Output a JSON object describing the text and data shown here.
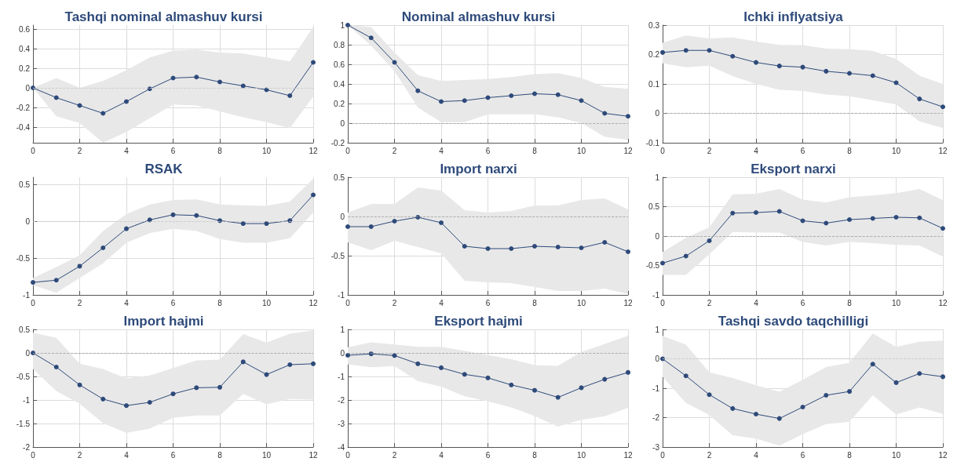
{
  "chart_data": [
    {
      "type": "line",
      "title": "Tashqi nominal almashuv kursi",
      "x": [
        0,
        1,
        2,
        3,
        4,
        5,
        6,
        7,
        8,
        9,
        10,
        11,
        12
      ],
      "xlim": [
        0,
        12
      ],
      "xticks": [
        0,
        2,
        4,
        6,
        8,
        10,
        12
      ],
      "ylim": [
        -0.56,
        0.64
      ],
      "yticks": [
        -0.4,
        -0.2,
        0,
        0.2,
        0.4,
        0.6
      ],
      "grid": true,
      "marker": "circle",
      "line_style": "solid",
      "ref_lines": [
        {
          "axis": "y",
          "value": 0,
          "line_style": "dashed",
          "color": "#c8c8c8"
        }
      ],
      "series": [
        {
          "color": "#2e4a7a",
          "values": [
            0,
            -0.1,
            -0.18,
            -0.26,
            -0.14,
            -0.01,
            0.1,
            0.11,
            0.06,
            0.02,
            -0.02,
            -0.08,
            0.26
          ],
          "lower": [
            0,
            -0.29,
            -0.36,
            -0.56,
            -0.45,
            -0.31,
            -0.17,
            -0.18,
            -0.24,
            -0.3,
            -0.35,
            -0.41,
            -0.09
          ],
          "upper": [
            0,
            0.1,
            0,
            0.07,
            0.18,
            0.31,
            0.38,
            0.39,
            0.36,
            0.35,
            0.31,
            0.27,
            0.62
          ]
        }
      ]
    },
    {
      "type": "line",
      "title": "Nominal almashuv kursi",
      "x": [
        0,
        1,
        2,
        3,
        4,
        5,
        6,
        7,
        8,
        9,
        10,
        11,
        12
      ],
      "xlim": [
        0,
        12
      ],
      "xticks": [
        0,
        2,
        4,
        6,
        8,
        10,
        12
      ],
      "ylim": [
        -0.2,
        1
      ],
      "yticks": [
        -0.2,
        0,
        0.2,
        0.4,
        0.6,
        0.8,
        1
      ],
      "grid": true,
      "marker": "circle",
      "line_style": "solid",
      "ref_lines": [
        {
          "axis": "y",
          "value": 0,
          "line_style": "dashed",
          "color": "#a0a0a0"
        }
      ],
      "series": [
        {
          "color": "#2e4a7a",
          "values": [
            1,
            0.87,
            0.62,
            0.33,
            0.22,
            0.23,
            0.26,
            0.28,
            0.3,
            0.29,
            0.23,
            0.1,
            0.07
          ],
          "lower": [
            1,
            0.79,
            0.53,
            0.16,
            0.01,
            0.01,
            0.09,
            0.09,
            0.09,
            0.06,
            0,
            -0.14,
            -0.17
          ],
          "upper": [
            1,
            0.98,
            0.72,
            0.49,
            0.43,
            0.44,
            0.45,
            0.47,
            0.5,
            0.51,
            0.46,
            0.37,
            0.35
          ]
        }
      ]
    },
    {
      "type": "line",
      "title": "Ichki inflyatsiya",
      "x": [
        0,
        1,
        2,
        3,
        4,
        5,
        6,
        7,
        8,
        9,
        10,
        11,
        12
      ],
      "xlim": [
        0,
        12
      ],
      "xticks": [
        0,
        2,
        4,
        6,
        8,
        10,
        12
      ],
      "ylim": [
        -0.1,
        0.3
      ],
      "yticks": [
        -0.1,
        0,
        0.1,
        0.2,
        0.3
      ],
      "grid": true,
      "marker": "circle",
      "line_style": "solid",
      "ref_lines": [
        {
          "axis": "y",
          "value": 0,
          "line_style": "dashed",
          "color": "#a0a0a0"
        }
      ],
      "series": [
        {
          "color": "#2e4a7a",
          "values": [
            0.207,
            0.214,
            0.214,
            0.194,
            0.173,
            0.161,
            0.157,
            0.143,
            0.136,
            0.128,
            0.104,
            0.049,
            0.022
          ],
          "lower": [
            0.17,
            0.157,
            0.162,
            0.127,
            0.1,
            0.08,
            0.076,
            0.064,
            0.058,
            0.045,
            0.03,
            -0.027,
            -0.05
          ],
          "upper": [
            0.24,
            0.265,
            0.255,
            0.258,
            0.245,
            0.233,
            0.232,
            0.22,
            0.218,
            0.213,
            0.185,
            0.128,
            0.1
          ]
        }
      ]
    },
    {
      "type": "line",
      "title": "RSAK",
      "x": [
        0,
        1,
        2,
        3,
        4,
        5,
        6,
        7,
        8,
        9,
        10,
        11,
        12
      ],
      "xlim": [
        0,
        12
      ],
      "xticks": [
        0,
        2,
        4,
        6,
        8,
        10,
        12
      ],
      "ylim": [
        -1,
        0.6
      ],
      "yticks": [
        -1,
        -0.5,
        0,
        0.5
      ],
      "grid": true,
      "marker": "circle",
      "line_style": "solid",
      "ref_lines": [
        {
          "axis": "y",
          "value": 0,
          "line_style": "dashed",
          "color": "#c8c8c8"
        }
      ],
      "series": [
        {
          "color": "#2e4a7a",
          "values": [
            -0.83,
            -0.8,
            -0.61,
            -0.36,
            -0.1,
            0.02,
            0.09,
            0.08,
            0.01,
            -0.03,
            -0.03,
            0.01,
            0.36
          ],
          "lower": [
            -0.87,
            -0.97,
            -0.77,
            -0.57,
            -0.29,
            -0.16,
            -0.1,
            -0.13,
            -0.24,
            -0.29,
            -0.29,
            -0.23,
            0.12
          ],
          "upper": [
            -0.77,
            -0.62,
            -0.46,
            -0.13,
            0.1,
            0.23,
            0.29,
            0.3,
            0.23,
            0.22,
            0.21,
            0.27,
            0.58
          ]
        }
      ]
    },
    {
      "type": "line",
      "title": "Import narxi",
      "x": [
        0,
        1,
        2,
        3,
        4,
        5,
        6,
        7,
        8,
        9,
        10,
        11,
        12
      ],
      "xlim": [
        0,
        12
      ],
      "xticks": [
        0,
        2,
        4,
        6,
        8,
        10,
        12
      ],
      "ylim": [
        -1,
        0.5
      ],
      "yticks": [
        -1,
        -0.5,
        0,
        0.5
      ],
      "grid": true,
      "marker": "circle",
      "line_style": "solid",
      "ref_lines": [
        {
          "axis": "y",
          "value": 0,
          "line_style": "dashed",
          "color": "#a0a0a0"
        }
      ],
      "series": [
        {
          "color": "#2e4a7a",
          "values": [
            -0.13,
            -0.13,
            -0.06,
            -0.01,
            -0.08,
            -0.38,
            -0.41,
            -0.41,
            -0.38,
            -0.39,
            -0.4,
            -0.33,
            -0.45
          ],
          "lower": [
            -0.33,
            -0.43,
            -0.31,
            -0.39,
            -0.47,
            -0.82,
            -0.84,
            -0.85,
            -0.9,
            -0.95,
            -0.95,
            -0.92,
            -0.99
          ],
          "upper": [
            0.05,
            0.16,
            0.16,
            0.37,
            0.33,
            0.08,
            0.05,
            0.07,
            0.14,
            0.14,
            0.21,
            0.23,
            0.09
          ]
        }
      ]
    },
    {
      "type": "line",
      "title": "Eksport narxi",
      "x": [
        0,
        1,
        2,
        3,
        4,
        5,
        6,
        7,
        8,
        9,
        10,
        11,
        12
      ],
      "xlim": [
        0,
        12
      ],
      "xticks": [
        0,
        2,
        4,
        6,
        8,
        10,
        12
      ],
      "ylim": [
        -1,
        1
      ],
      "yticks": [
        -1,
        -0.5,
        0,
        0.5,
        1
      ],
      "grid": true,
      "marker": "circle",
      "line_style": "solid",
      "ref_lines": [
        {
          "axis": "y",
          "value": 0,
          "line_style": "dashed",
          "color": "#a0a0a0"
        }
      ],
      "series": [
        {
          "color": "#2e4a7a",
          "values": [
            -0.46,
            -0.34,
            -0.08,
            0.39,
            0.4,
            0.42,
            0.26,
            0.22,
            0.28,
            0.3,
            0.32,
            0.31,
            0.13
          ],
          "lower": [
            -0.66,
            -0.66,
            -0.31,
            0.07,
            0.06,
            0.06,
            -0.1,
            -0.16,
            -0.1,
            -0.12,
            -0.15,
            -0.16,
            -0.35
          ],
          "upper": [
            -0.27,
            -0.03,
            0.15,
            0.71,
            0.72,
            0.8,
            0.62,
            0.57,
            0.66,
            0.69,
            0.73,
            0.8,
            0.61
          ]
        }
      ]
    },
    {
      "type": "line",
      "title": "Import hajmi",
      "x": [
        0,
        1,
        2,
        3,
        4,
        5,
        6,
        7,
        8,
        9,
        10,
        11,
        12
      ],
      "xlim": [
        0,
        12
      ],
      "xticks": [
        0,
        2,
        4,
        6,
        8,
        10,
        12
      ],
      "ylim": [
        -2,
        0.5
      ],
      "yticks": [
        -2,
        -1.5,
        -1,
        -0.5,
        0,
        0.5
      ],
      "grid": true,
      "marker": "circle",
      "line_style": "solid",
      "ref_lines": [
        {
          "axis": "y",
          "value": 0,
          "line_style": "dashed",
          "color": "#a0a0a0"
        }
      ],
      "series": [
        {
          "color": "#2e4a7a",
          "values": [
            0,
            -0.3,
            -0.68,
            -0.98,
            -1.12,
            -1.05,
            -0.87,
            -0.74,
            -0.73,
            -0.19,
            -0.46,
            -0.25,
            -0.23
          ],
          "lower": [
            -0.34,
            -0.81,
            -1.08,
            -1.49,
            -1.7,
            -1.61,
            -1.38,
            -1.33,
            -1.33,
            -0.87,
            -1.09,
            -0.98,
            -0.99
          ],
          "upper": [
            0.43,
            0.32,
            -0.23,
            -0.34,
            -0.54,
            -0.48,
            -0.32,
            -0.16,
            -0.14,
            0.4,
            0.22,
            0.41,
            0.48
          ]
        }
      ]
    },
    {
      "type": "line",
      "title": "Eksport hajmi",
      "x": [
        0,
        1,
        2,
        3,
        4,
        5,
        6,
        7,
        8,
        9,
        10,
        11,
        12
      ],
      "xlim": [
        0,
        12
      ],
      "xticks": [
        0,
        2,
        4,
        6,
        8,
        10,
        12
      ],
      "ylim": [
        -4,
        1
      ],
      "yticks": [
        -4,
        -3,
        -2,
        -1,
        0,
        1
      ],
      "grid": true,
      "marker": "circle",
      "line_style": "solid",
      "ref_lines": [
        {
          "axis": "y",
          "value": 0,
          "line_style": "dashed",
          "color": "#a0a0a0"
        }
      ],
      "series": [
        {
          "color": "#2e4a7a",
          "values": [
            -0.1,
            -0.04,
            -0.11,
            -0.46,
            -0.63,
            -0.91,
            -1.06,
            -1.36,
            -1.59,
            -1.89,
            -1.48,
            -1.12,
            -0.83
          ],
          "lower": [
            -0.48,
            -0.61,
            -0.56,
            -1.2,
            -1.43,
            -1.84,
            -2.06,
            -2.32,
            -2.68,
            -3.13,
            -2.84,
            -2.69,
            -2.33
          ],
          "upper": [
            0.24,
            0.45,
            0.36,
            0.26,
            0.26,
            0.09,
            -0.09,
            -0.27,
            -0.52,
            -0.55,
            0.04,
            0.38,
            0.73
          ]
        }
      ]
    },
    {
      "type": "line",
      "title": "Tashqi savdo taqchilligi",
      "x": [
        0,
        1,
        2,
        3,
        4,
        5,
        6,
        7,
        8,
        9,
        10,
        11,
        12
      ],
      "xlim": [
        0,
        12
      ],
      "xticks": [
        0,
        2,
        4,
        6,
        8,
        10,
        12
      ],
      "ylim": [
        -3,
        1
      ],
      "yticks": [
        -3,
        -2,
        -1,
        0,
        1
      ],
      "grid": true,
      "marker": "circle",
      "line_style": "solid",
      "ref_lines": [
        {
          "axis": "y",
          "value": 0,
          "line_style": "dashed",
          "color": "#c8c8c8"
        }
      ],
      "series": [
        {
          "color": "#2e4a7a",
          "values": [
            0,
            -0.58,
            -1.22,
            -1.69,
            -1.88,
            -2.03,
            -1.64,
            -1.24,
            -1.11,
            -0.18,
            -0.81,
            -0.5,
            -0.61
          ],
          "lower": [
            -0.61,
            -1.5,
            -1.91,
            -2.6,
            -2.71,
            -2.95,
            -2.56,
            -2.22,
            -2.14,
            -1.24,
            -1.89,
            -1.65,
            -1.87
          ],
          "upper": [
            0.78,
            0.48,
            -0.46,
            -0.65,
            -0.9,
            -1.12,
            -0.71,
            -0.28,
            -0.13,
            0.86,
            0.41,
            0.58,
            0.62
          ]
        }
      ]
    }
  ]
}
